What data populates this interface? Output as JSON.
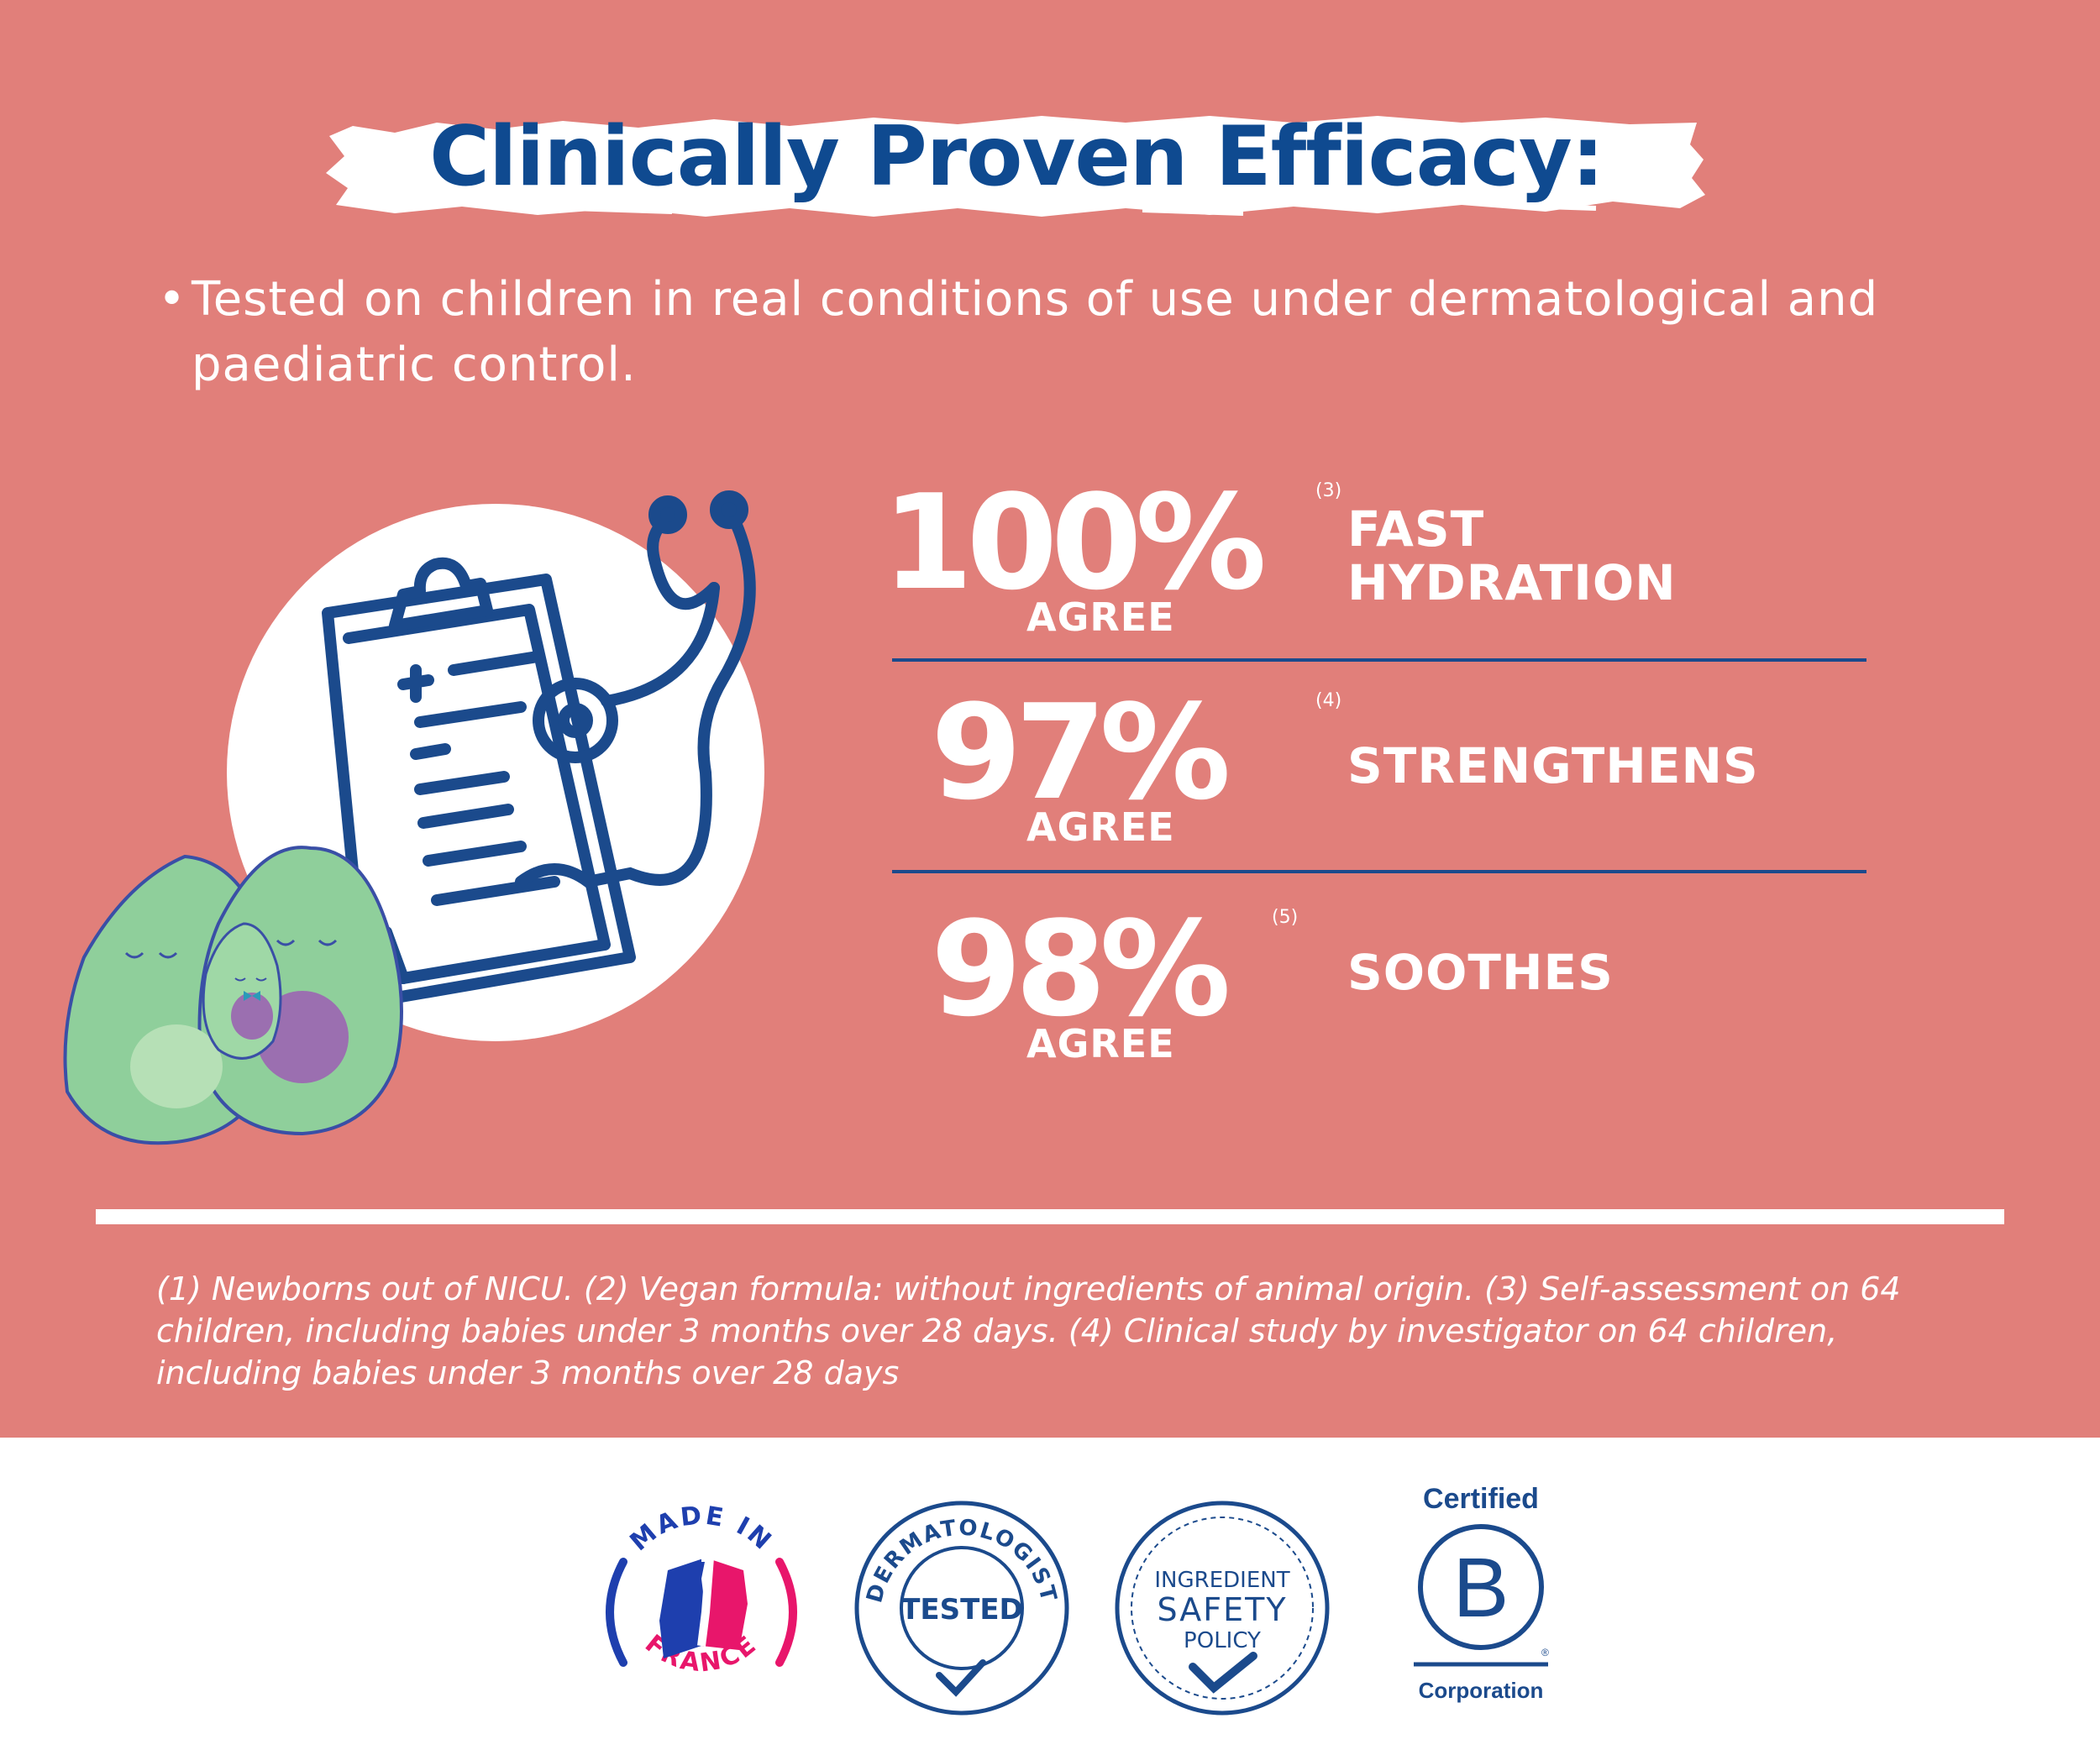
{
  "title": "Clinically Proven Efficacy:",
  "intro": {
    "bullet": "•",
    "text": "Tested on children in real conditions of use under dermatological and paediatric control."
  },
  "stats": [
    {
      "value": "100%",
      "ref": "(3)",
      "agree": "AGREE",
      "claim_line1": "FAST",
      "claim_line2": "HYDRATION"
    },
    {
      "value": "97%",
      "ref": "(4)",
      "agree": "AGREE",
      "claim_line1": "STRENGTHENS",
      "claim_line2": ""
    },
    {
      "value": "98%",
      "ref": "(5)",
      "agree": "AGREE",
      "claim_line1": "SOOTHES",
      "claim_line2": ""
    }
  ],
  "footnote": "(1) Newborns out of NICU. (2) Vegan formula: without ingredients of animal origin. (3) Self-assessment on 64 children, including babies under 3 months over 28 days. (4) Clinical study by investigator on 64 children, including babies under 3 months over 28 days",
  "badges": {
    "made_in_france": {
      "top": "MADE IN",
      "bottom": "FRANCE"
    },
    "dermatologist": {
      "ring": "DERMATOLOGIST",
      "center": "TESTED"
    },
    "ingredient": {
      "line1": "INGREDIENT",
      "line2": "SAFETY",
      "line3": "POLICY"
    },
    "bcorp": {
      "top": "Certified",
      "letter": "B",
      "reg": "®",
      "bottom": "Corporation"
    }
  },
  "colors": {
    "background": "#e17f7a",
    "navy": "#0f4a90",
    "white": "#ffffff",
    "avocado_green": "#8fcf9b",
    "pit_purple": "#9b6fb0",
    "france_blue": "#1e3fae",
    "france_red": "#e8166b"
  },
  "icons": [
    "clipboard-icon",
    "stethoscope-icon",
    "avocado-family-illustration",
    "checkmark-icon"
  ]
}
